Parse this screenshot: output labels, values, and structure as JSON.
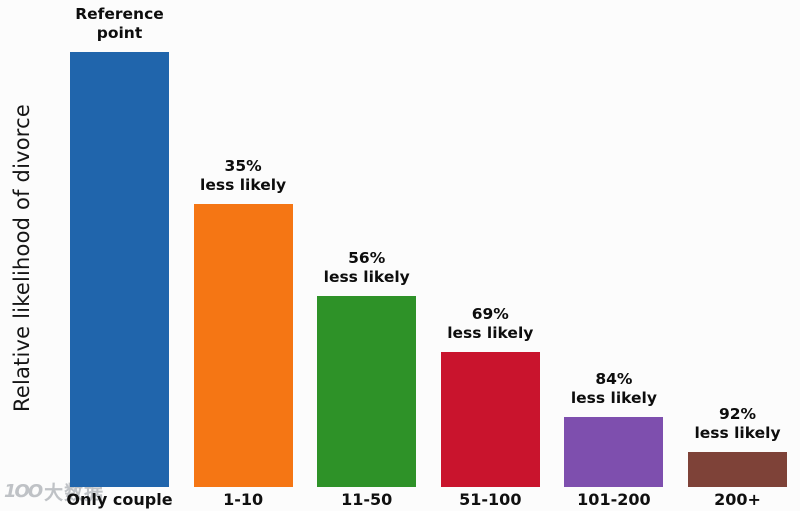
{
  "chart_data": {
    "type": "bar",
    "title": "",
    "ylabel": "Relative likelihood of divorce",
    "xlabel": "",
    "categories": [
      "Only couple",
      "1-10",
      "11-50",
      "51-100",
      "101-200",
      "200+"
    ],
    "values": [
      1.0,
      0.65,
      0.44,
      0.31,
      0.16,
      0.08
    ],
    "value_basis": "relative likelihood, reference bar = 1.00",
    "annotations": [
      "Reference point",
      "35% less likely",
      "56% less likely",
      "69% less likely",
      "84% less likely",
      "92% less likely"
    ],
    "colors": [
      "#2065ac",
      "#f57614",
      "#2e9228",
      "#c9142d",
      "#7e4fae",
      "#7e4238"
    ],
    "ylim": [
      0,
      1.12
    ],
    "grid": false,
    "legend": "none",
    "axis_lines": "none"
  },
  "bars": [
    {
      "category": "Only couple",
      "annotation_line1": "Reference",
      "annotation_line2": "point"
    },
    {
      "category": "1-10",
      "annotation_line1": "35%",
      "annotation_line2": "less likely"
    },
    {
      "category": "11-50",
      "annotation_line1": "56%",
      "annotation_line2": "less likely"
    },
    {
      "category": "51-100",
      "annotation_line1": "69%",
      "annotation_line2": "less likely"
    },
    {
      "category": "101-200",
      "annotation_line1": "84%",
      "annotation_line2": "less likely"
    },
    {
      "category": "200+",
      "annotation_line1": "92%",
      "annotation_line2": "less likely"
    }
  ],
  "watermark": {
    "logo": "1OO",
    "text": "大数据"
  }
}
